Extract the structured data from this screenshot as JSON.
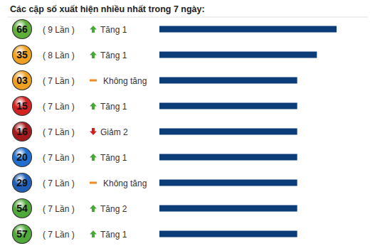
{
  "chart_data": {
    "type": "bar",
    "orientation": "horizontal",
    "title": "Các cặp số xuất hiện nhiều nhất trong 7 ngày:",
    "categories": [
      "66",
      "35",
      "03",
      "15",
      "16",
      "20",
      "29",
      "54",
      "57"
    ],
    "values": [
      9,
      8,
      7,
      7,
      7,
      7,
      7,
      7,
      7
    ],
    "value_labels": [
      "( 9 Lần )",
      "( 8 Lần )",
      "( 7 Lần )",
      "( 7 Lần )",
      "( 7 Lần )",
      "( 7 Lần )",
      "( 7 Lần )",
      "( 7 Lần )",
      "( 7 Lần )"
    ],
    "trends": [
      "Tăng 1",
      "Tăng 1",
      "Không tăng",
      "Tăng 1",
      "Giảm 2",
      "Tăng 1",
      "Không tăng",
      "Tăng 2",
      "Tăng 1"
    ],
    "trend_direction": [
      "up",
      "up",
      "flat",
      "up",
      "down",
      "up",
      "flat",
      "up",
      "up"
    ],
    "colors": [
      "#5fae3a",
      "#f0a020",
      "#f0a020",
      "#d42222",
      "#a3191c",
      "#1f6fd0",
      "#1f5fb8",
      "#4fa83a",
      "#4fa83a"
    ],
    "color": "#0d3d78",
    "xlim": [
      0,
      9
    ],
    "data_labels": true,
    "tick_labels": false,
    "grid": false
  }
}
